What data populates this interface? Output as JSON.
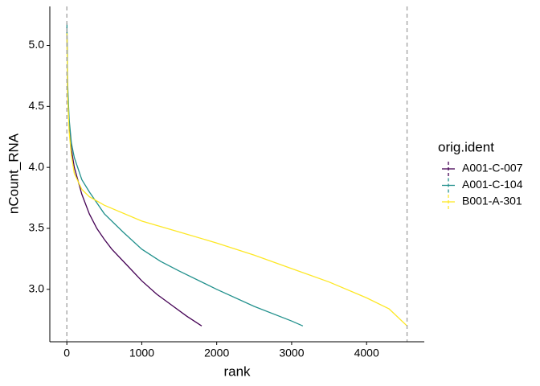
{
  "chart_data": {
    "type": "line",
    "x_label": "rank",
    "y_label": "nCount_RNA",
    "legend_title": "orig.ident",
    "legend": "right",
    "xlim": [
      -227,
      4770
    ],
    "ylim": [
      2.57,
      5.32
    ],
    "xticks": [
      0,
      1000,
      2000,
      3000,
      4000
    ],
    "yticks": [
      {
        "value": 3,
        "label": "3.0"
      },
      3.5,
      {
        "value": 4,
        "label": "4.0"
      },
      4.5,
      {
        "value": 5,
        "label": "5.0"
      }
    ],
    "grid": false,
    "vlines": [
      0,
      4540
    ],
    "vline_color": "#a0a0a0",
    "series": [
      {
        "name": "A001-C-007",
        "color": "#440154",
        "x": [
          1,
          10,
          30,
          60,
          100,
          200,
          300,
          400,
          500,
          600,
          800,
          1000,
          1200,
          1400,
          1600,
          1800
        ],
        "values": [
          5.15,
          4.6,
          4.35,
          4.15,
          4.0,
          3.78,
          3.62,
          3.5,
          3.41,
          3.33,
          3.2,
          3.07,
          2.96,
          2.87,
          2.78,
          2.7
        ]
      },
      {
        "name": "A001-C-104",
        "color": "#21908c",
        "x": [
          1,
          10,
          30,
          60,
          100,
          200,
          300,
          500,
          750,
          1000,
          1250,
          1500,
          2000,
          2500,
          3000,
          3150
        ],
        "values": [
          5.18,
          4.7,
          4.4,
          4.2,
          4.08,
          3.9,
          3.8,
          3.62,
          3.47,
          3.33,
          3.23,
          3.15,
          3.0,
          2.86,
          2.74,
          2.7
        ]
      },
      {
        "name": "B001-A-301",
        "color": "#fde725",
        "x": [
          1,
          10,
          30,
          60,
          100,
          200,
          300,
          500,
          1000,
          1500,
          2000,
          2500,
          3000,
          3500,
          4000,
          4300,
          4540
        ],
        "values": [
          5.1,
          4.6,
          4.3,
          4.1,
          3.95,
          3.82,
          3.76,
          3.69,
          3.56,
          3.47,
          3.38,
          3.28,
          3.17,
          3.06,
          2.93,
          2.84,
          2.7
        ]
      }
    ]
  }
}
